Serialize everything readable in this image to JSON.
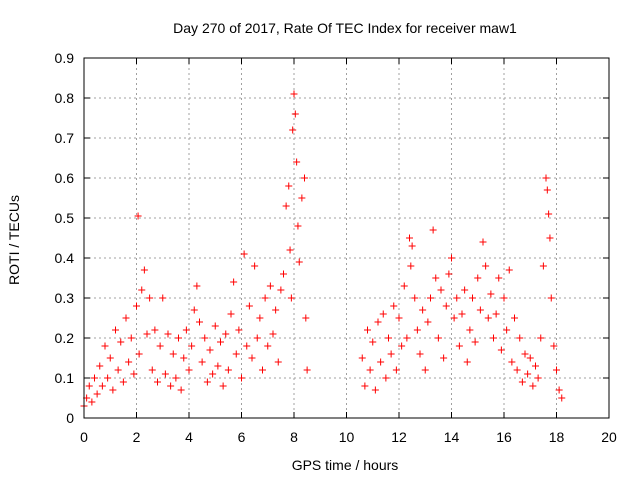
{
  "chart_data": {
    "type": "scatter",
    "title": "Day 270 of 2017, Rate Of TEC Index for receiver maw1",
    "xlabel": "GPS time / hours",
    "ylabel": "ROTI / TECUs",
    "xlim": [
      0,
      20
    ],
    "ylim": [
      0,
      0.9
    ],
    "xticks": [
      0,
      2,
      4,
      6,
      8,
      10,
      12,
      14,
      16,
      18,
      20
    ],
    "yticks": [
      0,
      0.1,
      0.2,
      0.3,
      0.4,
      0.5,
      0.6,
      0.7,
      0.8,
      0.9
    ],
    "grid": true,
    "marker": "+",
    "color": "#ff0000",
    "series": [
      {
        "points": [
          [
            0.0,
            0.03
          ],
          [
            0.1,
            0.05
          ],
          [
            0.2,
            0.08
          ],
          [
            0.3,
            0.04
          ],
          [
            0.4,
            0.1
          ],
          [
            0.5,
            0.06
          ],
          [
            0.6,
            0.13
          ],
          [
            0.7,
            0.08
          ],
          [
            0.8,
            0.18
          ],
          [
            0.9,
            0.1
          ],
          [
            1.0,
            0.15
          ],
          [
            1.1,
            0.07
          ],
          [
            1.2,
            0.22
          ],
          [
            1.3,
            0.12
          ],
          [
            1.4,
            0.19
          ],
          [
            1.5,
            0.09
          ],
          [
            1.6,
            0.25
          ],
          [
            1.7,
            0.14
          ],
          [
            1.8,
            0.2
          ],
          [
            1.9,
            0.11
          ],
          [
            2.0,
            0.28
          ],
          [
            2.06,
            0.505
          ],
          [
            2.1,
            0.16
          ],
          [
            2.2,
            0.32
          ],
          [
            2.3,
            0.37
          ],
          [
            2.4,
            0.21
          ],
          [
            2.5,
            0.3
          ],
          [
            2.6,
            0.12
          ],
          [
            2.7,
            0.22
          ],
          [
            2.8,
            0.09
          ],
          [
            2.9,
            0.18
          ],
          [
            3.0,
            0.3
          ],
          [
            3.1,
            0.11
          ],
          [
            3.2,
            0.21
          ],
          [
            3.3,
            0.08
          ],
          [
            3.4,
            0.16
          ],
          [
            3.5,
            0.1
          ],
          [
            3.6,
            0.2
          ],
          [
            3.7,
            0.07
          ],
          [
            3.8,
            0.15
          ],
          [
            3.9,
            0.22
          ],
          [
            4.0,
            0.12
          ],
          [
            4.1,
            0.18
          ],
          [
            4.2,
            0.27
          ],
          [
            4.3,
            0.33
          ],
          [
            4.4,
            0.24
          ],
          [
            4.5,
            0.14
          ],
          [
            4.6,
            0.2
          ],
          [
            4.7,
            0.09
          ],
          [
            4.8,
            0.17
          ],
          [
            4.9,
            0.11
          ],
          [
            5.0,
            0.23
          ],
          [
            5.1,
            0.13
          ],
          [
            5.2,
            0.19
          ],
          [
            5.3,
            0.08
          ],
          [
            5.4,
            0.21
          ],
          [
            5.5,
            0.12
          ],
          [
            5.6,
            0.26
          ],
          [
            5.7,
            0.34
          ],
          [
            5.8,
            0.16
          ],
          [
            5.9,
            0.22
          ],
          [
            6.0,
            0.1
          ],
          [
            6.1,
            0.41
          ],
          [
            6.2,
            0.18
          ],
          [
            6.3,
            0.28
          ],
          [
            6.4,
            0.15
          ],
          [
            6.5,
            0.38
          ],
          [
            6.6,
            0.2
          ],
          [
            6.7,
            0.25
          ],
          [
            6.8,
            0.12
          ],
          [
            6.9,
            0.3
          ],
          [
            7.0,
            0.18
          ],
          [
            7.1,
            0.33
          ],
          [
            7.2,
            0.21
          ],
          [
            7.3,
            0.27
          ],
          [
            7.4,
            0.14
          ],
          [
            7.5,
            0.32
          ],
          [
            7.6,
            0.36
          ],
          [
            7.7,
            0.53
          ],
          [
            7.8,
            0.58
          ],
          [
            7.85,
            0.42
          ],
          [
            7.9,
            0.3
          ],
          [
            7.95,
            0.72
          ],
          [
            8.0,
            0.81
          ],
          [
            8.05,
            0.76
          ],
          [
            8.1,
            0.64
          ],
          [
            8.15,
            0.48
          ],
          [
            8.2,
            0.39
          ],
          [
            8.3,
            0.55
          ],
          [
            8.4,
            0.6
          ],
          [
            8.45,
            0.25
          ],
          [
            8.5,
            0.12
          ],
          [
            10.6,
            0.15
          ],
          [
            10.7,
            0.08
          ],
          [
            10.8,
            0.22
          ],
          [
            10.9,
            0.12
          ],
          [
            11.0,
            0.19
          ],
          [
            11.1,
            0.07
          ],
          [
            11.2,
            0.24
          ],
          [
            11.3,
            0.14
          ],
          [
            11.4,
            0.26
          ],
          [
            11.5,
            0.1
          ],
          [
            11.6,
            0.2
          ],
          [
            11.7,
            0.16
          ],
          [
            11.8,
            0.28
          ],
          [
            11.9,
            0.12
          ],
          [
            12.0,
            0.25
          ],
          [
            12.1,
            0.18
          ],
          [
            12.2,
            0.33
          ],
          [
            12.3,
            0.2
          ],
          [
            12.4,
            0.45
          ],
          [
            12.45,
            0.38
          ],
          [
            12.5,
            0.43
          ],
          [
            12.6,
            0.3
          ],
          [
            12.7,
            0.22
          ],
          [
            12.8,
            0.16
          ],
          [
            12.9,
            0.27
          ],
          [
            13.0,
            0.12
          ],
          [
            13.1,
            0.24
          ],
          [
            13.2,
            0.3
          ],
          [
            13.3,
            0.47
          ],
          [
            13.4,
            0.35
          ],
          [
            13.5,
            0.2
          ],
          [
            13.6,
            0.32
          ],
          [
            13.7,
            0.15
          ],
          [
            13.8,
            0.28
          ],
          [
            13.9,
            0.36
          ],
          [
            14.0,
            0.4
          ],
          [
            14.1,
            0.25
          ],
          [
            14.2,
            0.3
          ],
          [
            14.3,
            0.18
          ],
          [
            14.4,
            0.26
          ],
          [
            14.5,
            0.32
          ],
          [
            14.6,
            0.14
          ],
          [
            14.7,
            0.22
          ],
          [
            14.8,
            0.3
          ],
          [
            14.9,
            0.19
          ],
          [
            15.0,
            0.35
          ],
          [
            15.1,
            0.27
          ],
          [
            15.2,
            0.44
          ],
          [
            15.3,
            0.38
          ],
          [
            15.4,
            0.25
          ],
          [
            15.5,
            0.31
          ],
          [
            15.6,
            0.2
          ],
          [
            15.7,
            0.26
          ],
          [
            15.8,
            0.35
          ],
          [
            15.9,
            0.17
          ],
          [
            16.0,
            0.3
          ],
          [
            16.1,
            0.22
          ],
          [
            16.2,
            0.37
          ],
          [
            16.3,
            0.14
          ],
          [
            16.4,
            0.25
          ],
          [
            16.5,
            0.12
          ],
          [
            16.6,
            0.2
          ],
          [
            16.7,
            0.09
          ],
          [
            16.8,
            0.16
          ],
          [
            16.9,
            0.11
          ],
          [
            17.0,
            0.15
          ],
          [
            17.1,
            0.08
          ],
          [
            17.2,
            0.13
          ],
          [
            17.3,
            0.1
          ],
          [
            17.4,
            0.2
          ],
          [
            17.5,
            0.38
          ],
          [
            17.6,
            0.6
          ],
          [
            17.65,
            0.57
          ],
          [
            17.7,
            0.51
          ],
          [
            17.75,
            0.45
          ],
          [
            17.8,
            0.3
          ],
          [
            17.9,
            0.18
          ],
          [
            18.0,
            0.12
          ],
          [
            18.1,
            0.07
          ],
          [
            18.2,
            0.05
          ]
        ]
      }
    ]
  }
}
